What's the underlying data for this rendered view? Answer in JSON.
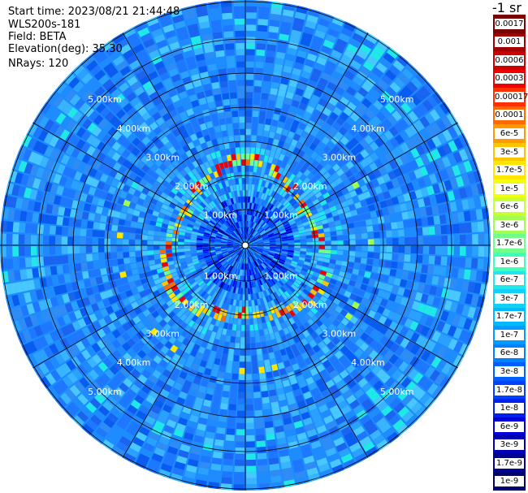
{
  "header": {
    "start_time": "Start time: 2023/08/21 21:44:48",
    "instrument": "WLS200s-181",
    "field": "Field: BETA",
    "elevation": "Elevation(deg): 35.30",
    "nrays": "NRays: 120"
  },
  "colorbar": {
    "unit_title": "-1 sr",
    "labels": [
      "0.0017",
      "0.001",
      "0.0006",
      "0.0003",
      "0.00017",
      "0.0001",
      "6e-5",
      "3e-5",
      "1.7e-5",
      "1e-5",
      "6e-6",
      "3e-6",
      "1.7e-6",
      "1e-6",
      "6e-7",
      "3e-7",
      "1.7e-7",
      "1e-7",
      "6e-8",
      "3e-8",
      "1.7e-8",
      "1e-8",
      "6e-9",
      "3e-9",
      "1.7e-9",
      "1e-9"
    ],
    "colors": [
      "#7a0000",
      "#a00000",
      "#cc0000",
      "#f00000",
      "#ff3000",
      "#ff6a00",
      "#ff9a00",
      "#ffc400",
      "#ffe600",
      "#f0ff10",
      "#c8ff30",
      "#a0ff50",
      "#70ff88",
      "#40ffb8",
      "#20e8e8",
      "#10d0f8",
      "#00b8ff",
      "#009cff",
      "#0080ff",
      "#0060ff",
      "#0040ff",
      "#0020f0",
      "#0000d8",
      "#0000b0",
      "#000090",
      "#000070"
    ]
  },
  "range_rings": {
    "labels": [
      "1.00km",
      "2.00km",
      "3.00km",
      "4.00km",
      "5.00km"
    ]
  }
}
